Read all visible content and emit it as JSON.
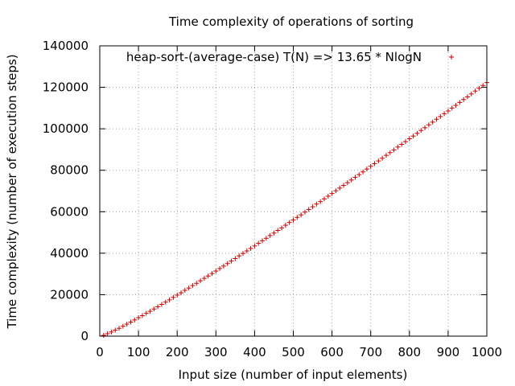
{
  "chart_data": {
    "type": "scatter",
    "title": "Time complexity of operations of sorting",
    "xlabel": "Input size (number of input elements)",
    "ylabel": "Time complexity (number of execution steps)",
    "xlim": [
      0,
      1000
    ],
    "ylim": [
      0,
      140000
    ],
    "x_ticks": [
      "0",
      "100",
      "200",
      "300",
      "400",
      "500",
      "600",
      "700",
      "800",
      "900",
      "1000"
    ],
    "y_ticks": [
      "0",
      "20000",
      "40000",
      "60000",
      "80000",
      "100000",
      "120000",
      "140000"
    ],
    "grid": true,
    "legend_position": "top-right",
    "series": [
      {
        "name": "heap-sort-(average-case) T(N) => 13.65 * NlogN",
        "color": "#cc0000",
        "marker": "plus",
        "x": [
          10,
          20,
          30,
          40,
          50,
          60,
          70,
          80,
          90,
          100,
          110,
          120,
          130,
          140,
          150,
          160,
          170,
          180,
          190,
          200,
          210,
          220,
          230,
          240,
          250,
          260,
          270,
          280,
          290,
          300,
          310,
          320,
          330,
          340,
          350,
          360,
          370,
          380,
          390,
          400,
          410,
          420,
          430,
          440,
          450,
          460,
          470,
          480,
          490,
          500,
          510,
          520,
          530,
          540,
          550,
          560,
          570,
          580,
          590,
          600,
          610,
          620,
          630,
          640,
          650,
          660,
          670,
          680,
          690,
          700,
          710,
          720,
          730,
          740,
          750,
          760,
          770,
          780,
          790,
          800,
          810,
          820,
          830,
          840,
          850,
          860,
          870,
          880,
          890,
          900,
          910,
          920,
          930,
          940,
          950,
          960,
          970,
          980,
          990,
          1000
        ],
        "y": [
          400,
          1200,
          2000,
          2900,
          3800,
          4800,
          5800,
          6800,
          7800,
          8900,
          9900,
          11000,
          12000,
          13100,
          14200,
          15300,
          16400,
          17500,
          18700,
          19800,
          20900,
          22100,
          23200,
          24400,
          25500,
          26700,
          27900,
          29000,
          30200,
          31400,
          32600,
          33800,
          35000,
          36200,
          37400,
          38700,
          39900,
          41100,
          42300,
          43500,
          44800,
          46000,
          47200,
          48500,
          49700,
          51000,
          52200,
          53500,
          54800,
          56000,
          57300,
          58500,
          59800,
          61100,
          62400,
          63700,
          64900,
          66200,
          67500,
          68800,
          70100,
          71400,
          72700,
          74000,
          75300,
          76600,
          77900,
          79200,
          80600,
          81900,
          83200,
          84500,
          85800,
          87200,
          88500,
          89800,
          91200,
          92500,
          93800,
          95200,
          96500,
          97800,
          99200,
          100500,
          101900,
          103200,
          104600,
          105900,
          107300,
          108600,
          110000,
          111300,
          112700,
          114100,
          115400,
          116800,
          118200,
          119500,
          120900,
          122300
        ]
      }
    ]
  }
}
